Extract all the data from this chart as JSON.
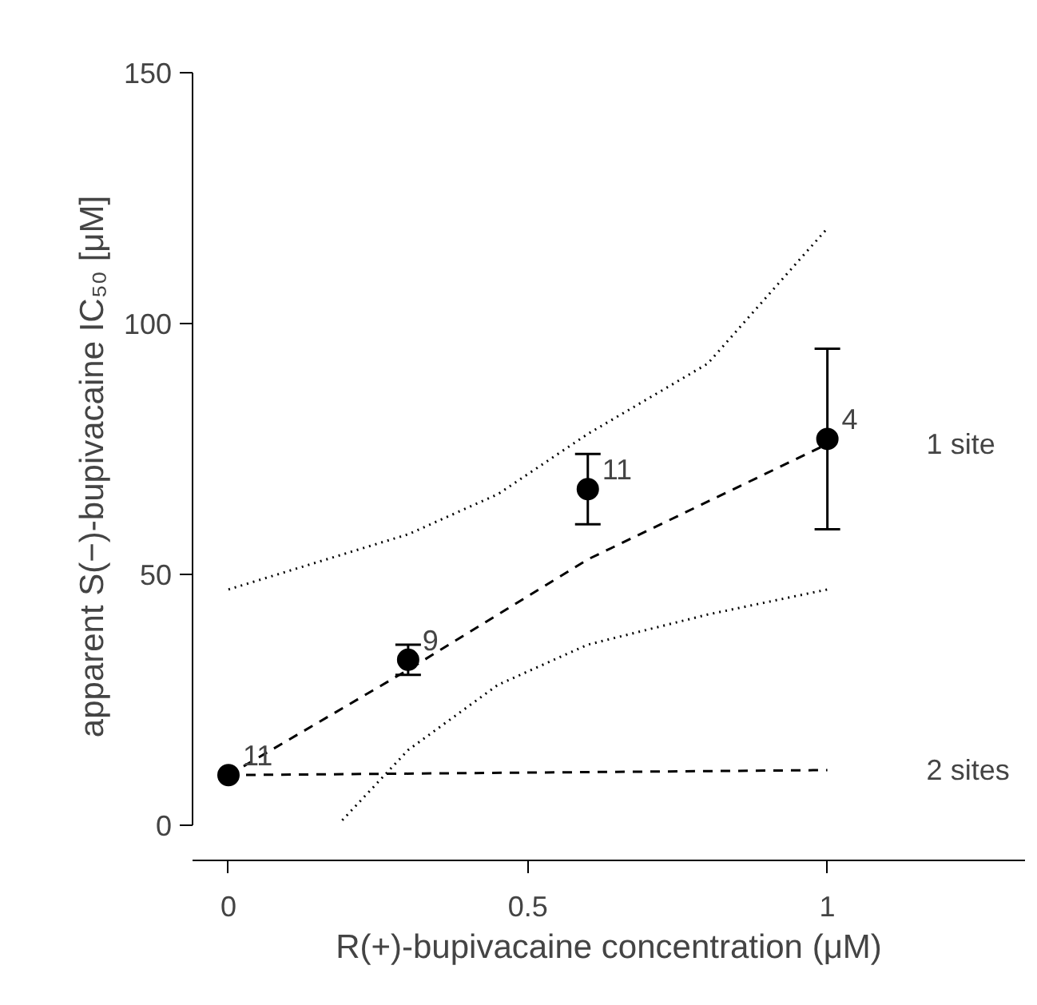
{
  "chart_data": {
    "type": "scatter",
    "xlabel": "R(+)-bupivacaine concentration (μM)",
    "ylabel": "apparent S(−)-bupivacaine IC₅₀ [μM]",
    "x": [
      0,
      0.3,
      0.6,
      1
    ],
    "xlim": [
      -0.06,
      1.33
    ],
    "ylim": [
      -7,
      150
    ],
    "xticks": [
      0,
      0.5,
      1
    ],
    "yticks": [
      0,
      50,
      100,
      150
    ],
    "grid": false,
    "marker": "circle",
    "series": [
      {
        "color": "#000000",
        "values": [
          10,
          33,
          67,
          77
        ],
        "errors": [
          null,
          3,
          7,
          18
        ]
      },
      {
        "type": "line",
        "name": "1 site",
        "color": "#000000",
        "line_style": "dashed",
        "marker": "none",
        "x": [
          0,
          0.3,
          0.6,
          1
        ],
        "values": [
          10,
          31,
          53,
          76
        ]
      },
      {
        "type": "line",
        "name": "2 sites",
        "color": "#000000",
        "line_style": "dashed",
        "marker": "none",
        "x": [
          0,
          1
        ],
        "values": [
          10,
          11
        ]
      },
      {
        "type": "line",
        "color": "#000000",
        "line_style": "dotted",
        "marker": "none",
        "x": [
          0,
          0.3,
          0.45,
          0.6,
          0.8,
          1
        ],
        "values": [
          47,
          58,
          66,
          78,
          92,
          119
        ]
      },
      {
        "type": "line",
        "color": "#000000",
        "line_style": "dotted",
        "marker": "none",
        "x": [
          0.19,
          0.3,
          0.45,
          0.6,
          0.8,
          1
        ],
        "values": [
          1,
          15,
          28,
          36,
          42,
          47
        ]
      }
    ],
    "annotations": [
      {
        "text": "11",
        "x": 0,
        "y": 10
      },
      {
        "text": "9",
        "x": 0.3,
        "y": 33
      },
      {
        "text": "11",
        "x": 0.6,
        "y": 67
      },
      {
        "text": "4",
        "x": 1,
        "y": 77
      }
    ]
  }
}
